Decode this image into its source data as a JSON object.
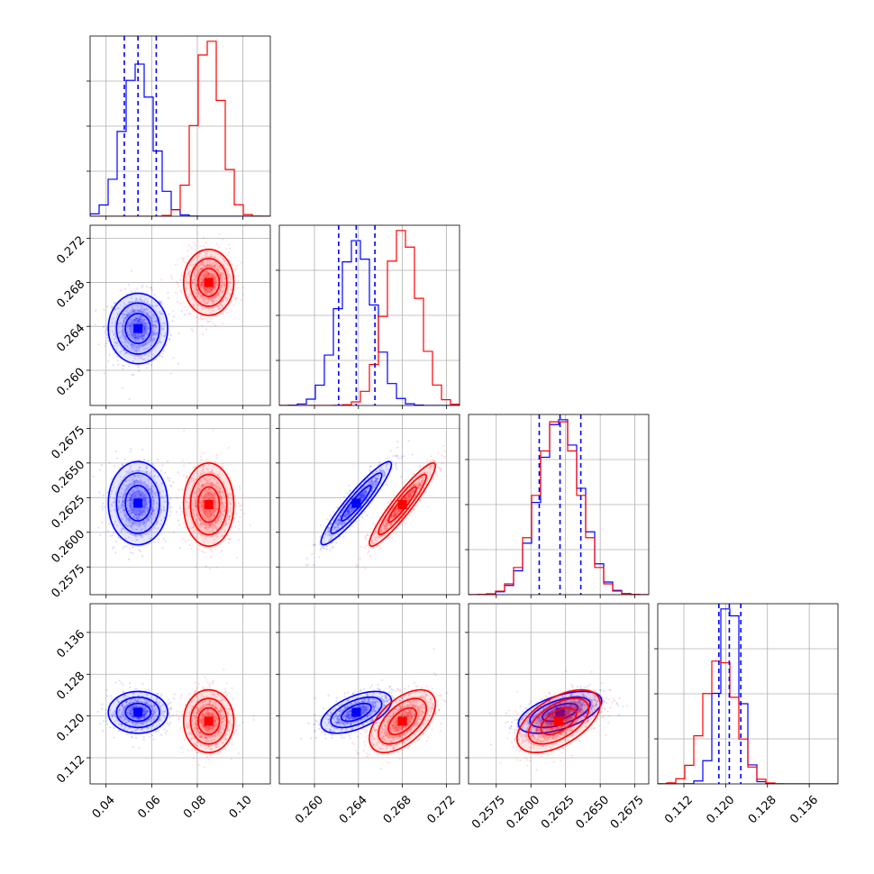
{
  "chart_data": {
    "type": "corner",
    "title": "",
    "grid": true,
    "params": [
      {
        "range": [
          0.033,
          0.112
        ],
        "ticks": [
          {
            "v": 0.04,
            "label": "0.04"
          },
          {
            "v": 0.06,
            "label": "0.06"
          },
          {
            "v": 0.08,
            "label": "0.08"
          },
          {
            "v": 0.1,
            "label": "0.10"
          }
        ],
        "quantiles_blue": [
          0.048,
          0.054,
          0.062
        ]
      },
      {
        "range": [
          0.2568,
          0.2732
        ],
        "ticks": [
          {
            "v": 0.26,
            "label": "0.260"
          },
          {
            "v": 0.264,
            "label": "0.264"
          },
          {
            "v": 0.268,
            "label": "0.268"
          },
          {
            "v": 0.272,
            "label": "0.272"
          }
        ],
        "quantiles_blue": [
          0.2622,
          0.2638,
          0.2655
        ]
      },
      {
        "range": [
          0.2555,
          0.2685
        ],
        "ticks": [
          {
            "v": 0.2575,
            "label": "0.2575"
          },
          {
            "v": 0.26,
            "label": "0.2600"
          },
          {
            "v": 0.2625,
            "label": "0.2625"
          },
          {
            "v": 0.265,
            "label": "0.2650"
          },
          {
            "v": 0.2675,
            "label": "0.2675"
          }
        ],
        "quantiles_blue": [
          0.2606,
          0.2621,
          0.2636
        ]
      },
      {
        "range": [
          0.107,
          0.1415
        ],
        "ticks": [
          {
            "v": 0.112,
            "label": "0.112"
          },
          {
            "v": 0.12,
            "label": "0.120"
          },
          {
            "v": 0.128,
            "label": "0.128"
          },
          {
            "v": 0.136,
            "label": "0.136"
          }
        ],
        "quantiles_blue": [
          0.1187,
          0.1207,
          0.1229
        ]
      }
    ],
    "series": [
      {
        "color": "#0000ff",
        "mean": [
          0.054,
          0.2638,
          0.2621,
          0.1207
        ],
        "std": [
          0.0065,
          0.0016,
          0.0015,
          0.002
        ],
        "corr": [
          [
            1,
            0,
            0,
            0
          ],
          [
            0,
            1,
            0.93,
            0.55
          ],
          [
            0,
            0.93,
            1,
            0.55
          ],
          [
            0,
            0.55,
            0.55,
            1
          ]
        ]
      },
      {
        "color": "#ff0000",
        "mean": [
          0.085,
          0.268,
          0.262,
          0.119
        ],
        "std": [
          0.0055,
          0.0015,
          0.0015,
          0.003
        ],
        "corr": [
          [
            1,
            0,
            0,
            0
          ],
          [
            0,
            1,
            0.93,
            0.55
          ],
          [
            0,
            0.93,
            1,
            0.55
          ],
          [
            0,
            0.55,
            0.55,
            1
          ]
        ]
      }
    ]
  }
}
